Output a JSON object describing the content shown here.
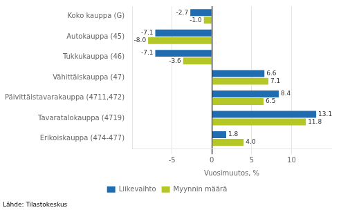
{
  "chart_data": {
    "type": "bar",
    "orientation": "horizontal",
    "categories": [
      "Koko kauppa (G)",
      "Autokauppa (45)",
      "Tukkukauppa (46)",
      "Vähittäiskauppa (47)",
      "Päivittäistavarakauppa (4711,472)",
      "Tavaratalokauppa (4719)",
      "Erikoiskauppa (474-477)"
    ],
    "series": [
      {
        "name": "Liikevaihto",
        "color": "#1F6CB0",
        "values": [
          -2.7,
          -7.1,
          -7.1,
          6.6,
          8.4,
          13.1,
          1.8
        ],
        "value_labels": [
          "-2.7",
          "-7.1",
          "-7.1",
          "6.6",
          "8.4",
          "13.1",
          "1.8"
        ]
      },
      {
        "name": "Myynnin määrä",
        "color": "#B5C727",
        "values": [
          -1.0,
          -8.0,
          -3.6,
          7.1,
          6.5,
          11.8,
          4.0
        ],
        "value_labels": [
          "-1.0",
          "-8.0",
          "-3.6",
          "7.1",
          "6.5",
          "11.8",
          "4.0"
        ]
      }
    ],
    "xlabel": "Vuosimuutos, %",
    "xlim": [
      -10,
      15
    ],
    "xticks": [
      -5,
      0,
      5,
      10
    ],
    "grid": true,
    "legend": "bottom",
    "data_labels": true,
    "source": "Lähde: Tilastokeskus"
  }
}
